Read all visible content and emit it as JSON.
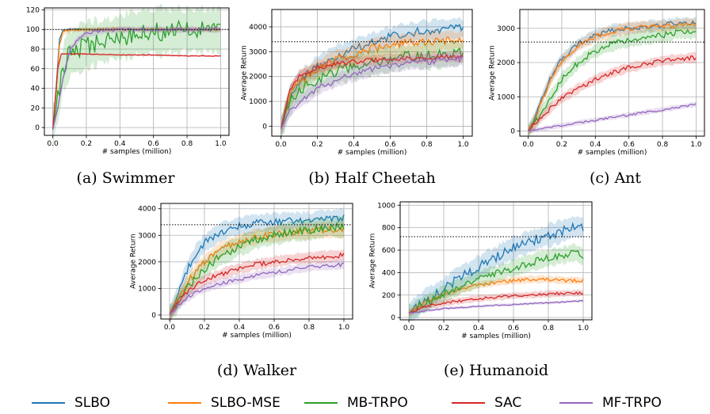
{
  "series_names": [
    "SLBO",
    "SLBO-MSE",
    "MB-TRPO",
    "SAC",
    "MF-TRPO"
  ],
  "series_colors": [
    "#1f77b4",
    "#ff7f0e",
    "#2ca02c",
    "#d62728",
    "#9467bd"
  ],
  "legend": [
    {
      "label": "SLBO",
      "color": "#1f77b4"
    },
    {
      "label": "SLBO-MSE",
      "color": "#ff7f0e"
    },
    {
      "label": "MB-TRPO",
      "color": "#2ca02c"
    },
    {
      "label": "SAC",
      "color": "#d62728"
    },
    {
      "label": "MF-TRPO",
      "color": "#9467bd"
    }
  ],
  "chart_data": [
    {
      "type": "line",
      "caption": "(a) Swimmer",
      "xlabel": "# samples (million)",
      "ylabel": "",
      "xlim": [
        -0.05,
        1.05
      ],
      "ylim": [
        -8,
        122
      ],
      "xticks": [
        0.0,
        0.2,
        0.4,
        0.6,
        0.8,
        1.0
      ],
      "xtick_labels": [
        "0.0",
        "0.2",
        "0.4",
        "0.6",
        "0.8",
        "1.0"
      ],
      "yticks": [
        0,
        20,
        40,
        60,
        80,
        100,
        120
      ],
      "ytick_labels": [
        "0",
        "20",
        "40",
        "60",
        "80",
        "100",
        "120"
      ],
      "reference_line": 100,
      "grid": true,
      "series": [
        {
          "name": "SLBO",
          "x": [
            0,
            0.02,
            0.04,
            0.06,
            0.1,
            0.2,
            0.4,
            0.6,
            0.8,
            1.0
          ],
          "y": [
            -2,
            40,
            90,
            99,
            100,
            100,
            100,
            100,
            100,
            100
          ],
          "band": 2
        },
        {
          "name": "SLBO-MSE",
          "x": [
            0,
            0.02,
            0.04,
            0.06,
            0.1,
            0.2,
            0.4,
            0.6,
            0.8,
            1.0
          ],
          "y": [
            -2,
            35,
            85,
            97,
            99,
            100,
            100,
            100,
            100,
            100
          ],
          "band": 3
        },
        {
          "name": "MB-TRPO",
          "x": [
            0,
            0.03,
            0.06,
            0.1,
            0.15,
            0.2,
            0.3,
            0.4,
            0.5,
            0.6,
            0.8,
            1.0
          ],
          "y": [
            -2,
            30,
            60,
            75,
            80,
            84,
            88,
            92,
            96,
            98,
            99,
            99
          ],
          "band": 28
        },
        {
          "name": "SAC",
          "x": [
            0,
            0.03,
            0.05,
            0.1,
            0.2,
            0.4,
            0.6,
            0.8,
            1.0
          ],
          "y": [
            -2,
            60,
            75,
            75,
            75,
            74,
            74,
            73,
            73
          ],
          "band": 1
        },
        {
          "name": "MF-TRPO",
          "x": [
            0,
            0.03,
            0.06,
            0.1,
            0.15,
            0.2,
            0.3,
            0.4,
            0.6,
            1.0
          ],
          "y": [
            -2,
            20,
            50,
            78,
            90,
            96,
            99,
            100,
            100,
            100
          ],
          "band": 4
        }
      ]
    },
    {
      "type": "line",
      "caption": "(b) Half Cheetah",
      "xlabel": "# samples (million)",
      "ylabel": "Average Return",
      "xlim": [
        -0.05,
        1.05
      ],
      "ylim": [
        -400,
        4700
      ],
      "xticks": [
        0.0,
        0.2,
        0.4,
        0.6,
        0.8,
        1.0
      ],
      "xtick_labels": [
        "0.0",
        "0.2",
        "0.4",
        "0.6",
        "0.8",
        "1.0"
      ],
      "yticks": [
        0,
        1000,
        2000,
        3000,
        4000
      ],
      "ytick_labels": [
        "0",
        "1000",
        "2000",
        "3000",
        "4000"
      ],
      "reference_line": 3400,
      "grid": true,
      "series": [
        {
          "name": "SLBO",
          "x": [
            0,
            0.05,
            0.1,
            0.2,
            0.3,
            0.4,
            0.5,
            0.6,
            0.7,
            0.8,
            0.9,
            1.0
          ],
          "y": [
            -100,
            1200,
            1800,
            2400,
            2800,
            3100,
            3350,
            3600,
            3750,
            3850,
            3900,
            3950
          ],
          "band": 500
        },
        {
          "name": "SLBO-MSE",
          "x": [
            0,
            0.05,
            0.1,
            0.2,
            0.3,
            0.4,
            0.5,
            0.6,
            0.7,
            0.8,
            0.9,
            1.0
          ],
          "y": [
            -100,
            1200,
            1800,
            2300,
            2650,
            2900,
            3100,
            3250,
            3350,
            3400,
            3450,
            3450
          ],
          "band": 500
        },
        {
          "name": "MB-TRPO",
          "x": [
            0,
            0.05,
            0.1,
            0.2,
            0.3,
            0.4,
            0.5,
            0.6,
            0.7,
            0.8,
            0.9,
            1.0
          ],
          "y": [
            -100,
            1000,
            1400,
            1900,
            2200,
            2400,
            2550,
            2700,
            2800,
            2850,
            2900,
            2950
          ],
          "band": 650
        },
        {
          "name": "SAC",
          "x": [
            0,
            0.05,
            0.1,
            0.2,
            0.3,
            0.4,
            0.5,
            0.6,
            0.7,
            0.8,
            0.9,
            1.0
          ],
          "y": [
            -100,
            1500,
            2000,
            2350,
            2500,
            2600,
            2650,
            2700,
            2750,
            2750,
            2800,
            2800
          ],
          "band": 250
        },
        {
          "name": "MF-TRPO",
          "x": [
            0,
            0.05,
            0.1,
            0.2,
            0.3,
            0.4,
            0.5,
            0.6,
            0.7,
            0.8,
            0.9,
            1.0
          ],
          "y": [
            -100,
            600,
            1000,
            1500,
            1850,
            2100,
            2300,
            2450,
            2550,
            2600,
            2650,
            2700
          ],
          "band": 350
        }
      ]
    },
    {
      "type": "line",
      "caption": "(c) Ant",
      "xlabel": "# samples (million)",
      "ylabel": "Average Return",
      "xlim": [
        -0.05,
        1.05
      ],
      "ylim": [
        -150,
        3550
      ],
      "xticks": [
        0.0,
        0.2,
        0.4,
        0.6,
        0.8,
        1.0
      ],
      "xtick_labels": [
        "0.0",
        "0.2",
        "0.4",
        "0.6",
        "0.8",
        "1.0"
      ],
      "yticks": [
        0,
        1000,
        2000,
        3000
      ],
      "ytick_labels": [
        "0",
        "1000",
        "2000",
        "3000"
      ],
      "reference_line": 2600,
      "grid": true,
      "series": [
        {
          "name": "SLBO",
          "x": [
            0,
            0.05,
            0.1,
            0.15,
            0.2,
            0.3,
            0.4,
            0.5,
            0.6,
            0.7,
            0.8,
            0.9,
            1.0
          ],
          "y": [
            0,
            500,
            1200,
            1700,
            2100,
            2550,
            2800,
            2950,
            3000,
            3050,
            3100,
            3150,
            3150
          ],
          "band": 200
        },
        {
          "name": "SLBO-MSE",
          "x": [
            0,
            0.05,
            0.1,
            0.15,
            0.2,
            0.3,
            0.4,
            0.5,
            0.6,
            0.7,
            0.8,
            0.9,
            1.0
          ],
          "y": [
            0,
            450,
            1100,
            1650,
            2050,
            2500,
            2750,
            2900,
            3000,
            3050,
            3050,
            3100,
            3100
          ],
          "band": 200
        },
        {
          "name": "MB-TRPO",
          "x": [
            0,
            0.05,
            0.1,
            0.15,
            0.2,
            0.3,
            0.4,
            0.5,
            0.6,
            0.7,
            0.8,
            0.9,
            1.0
          ],
          "y": [
            0,
            300,
            700,
            1100,
            1500,
            2000,
            2350,
            2550,
            2650,
            2750,
            2800,
            2900,
            2900
          ],
          "band": 250
        },
        {
          "name": "SAC",
          "x": [
            0,
            0.05,
            0.1,
            0.15,
            0.2,
            0.3,
            0.4,
            0.5,
            0.6,
            0.7,
            0.8,
            0.9,
            1.0
          ],
          "y": [
            0,
            250,
            500,
            750,
            950,
            1250,
            1500,
            1700,
            1850,
            1950,
            2050,
            2100,
            2150
          ],
          "band": 180
        },
        {
          "name": "MF-TRPO",
          "x": [
            0,
            0.1,
            0.2,
            0.3,
            0.4,
            0.5,
            0.6,
            0.7,
            0.8,
            0.9,
            1.0
          ],
          "y": [
            0,
            80,
            160,
            240,
            320,
            400,
            470,
            550,
            620,
            700,
            780
          ],
          "band": 90
        }
      ]
    },
    {
      "type": "line",
      "caption": "(d) Walker",
      "xlabel": "# samples (million)",
      "ylabel": "Average Return",
      "xlim": [
        -0.05,
        1.05
      ],
      "ylim": [
        -150,
        4200
      ],
      "xticks": [
        0.0,
        0.2,
        0.4,
        0.6,
        0.8,
        1.0
      ],
      "xtick_labels": [
        "0.0",
        "0.2",
        "0.4",
        "0.6",
        "0.8",
        "1.0"
      ],
      "yticks": [
        0,
        1000,
        2000,
        3000,
        4000
      ],
      "ytick_labels": [
        "0",
        "1000",
        "2000",
        "3000",
        "4000"
      ],
      "reference_line": 3400,
      "grid": true,
      "series": [
        {
          "name": "SLBO",
          "x": [
            0,
            0.05,
            0.1,
            0.15,
            0.2,
            0.3,
            0.4,
            0.5,
            0.6,
            0.7,
            0.8,
            0.9,
            1.0
          ],
          "y": [
            0,
            800,
            1700,
            2300,
            2700,
            3150,
            3350,
            3450,
            3500,
            3550,
            3550,
            3600,
            3650
          ],
          "band": 400
        },
        {
          "name": "SLBO-MSE",
          "x": [
            0,
            0.05,
            0.1,
            0.15,
            0.2,
            0.3,
            0.4,
            0.5,
            0.6,
            0.7,
            0.8,
            0.9,
            1.0
          ],
          "y": [
            0,
            600,
            1200,
            1650,
            2000,
            2500,
            2750,
            2950,
            3050,
            3100,
            3150,
            3200,
            3200
          ],
          "band": 350
        },
        {
          "name": "MB-TRPO",
          "x": [
            0,
            0.05,
            0.1,
            0.15,
            0.2,
            0.3,
            0.4,
            0.5,
            0.6,
            0.7,
            0.8,
            0.9,
            1.0
          ],
          "y": [
            0,
            500,
            1000,
            1400,
            1750,
            2250,
            2600,
            2850,
            3000,
            3150,
            3200,
            3300,
            3300
          ],
          "band": 450
        },
        {
          "name": "SAC",
          "x": [
            0,
            0.05,
            0.1,
            0.15,
            0.2,
            0.3,
            0.4,
            0.5,
            0.6,
            0.7,
            0.8,
            0.9,
            1.0
          ],
          "y": [
            0,
            500,
            850,
            1100,
            1300,
            1550,
            1750,
            1900,
            2000,
            2100,
            2150,
            2200,
            2250
          ],
          "band": 250
        },
        {
          "name": "MF-TRPO",
          "x": [
            0,
            0.05,
            0.1,
            0.15,
            0.2,
            0.3,
            0.4,
            0.5,
            0.6,
            0.7,
            0.8,
            0.9,
            1.0
          ],
          "y": [
            0,
            350,
            650,
            850,
            1000,
            1200,
            1350,
            1500,
            1600,
            1700,
            1800,
            1850,
            1900
          ],
          "band": 200
        }
      ]
    },
    {
      "type": "line",
      "caption": "(e) Humanoid",
      "xlabel": "# samples (million)",
      "ylabel": "Average Return",
      "xlim": [
        -0.05,
        1.05
      ],
      "ylim": [
        -20,
        1030
      ],
      "xticks": [
        0.0,
        0.2,
        0.4,
        0.6,
        0.8,
        1.0
      ],
      "xtick_labels": [
        "0.0",
        "0.2",
        "0.4",
        "0.6",
        "0.8",
        "1.0"
      ],
      "yticks": [
        0,
        200,
        400,
        600,
        800,
        1000
      ],
      "ytick_labels": [
        "0",
        "200",
        "400",
        "600",
        "800",
        "1000"
      ],
      "reference_line": 720,
      "grid": true,
      "series": [
        {
          "name": "SLBO",
          "x": [
            0,
            0.05,
            0.1,
            0.2,
            0.3,
            0.4,
            0.5,
            0.6,
            0.7,
            0.8,
            0.9,
            0.95,
            1.0
          ],
          "y": [
            40,
            100,
            160,
            260,
            360,
            450,
            540,
            620,
            680,
            730,
            780,
            810,
            800
          ],
          "band": 120
        },
        {
          "name": "SLBO-MSE",
          "x": [
            0,
            0.05,
            0.1,
            0.2,
            0.3,
            0.4,
            0.5,
            0.6,
            0.7,
            0.8,
            0.9,
            1.0
          ],
          "y": [
            40,
            90,
            140,
            200,
            250,
            290,
            310,
            330,
            340,
            340,
            330,
            330
          ],
          "band": 40
        },
        {
          "name": "MB-TRPO",
          "x": [
            0,
            0.05,
            0.1,
            0.2,
            0.3,
            0.4,
            0.5,
            0.6,
            0.7,
            0.8,
            0.9,
            0.95,
            1.0
          ],
          "y": [
            40,
            90,
            130,
            210,
            280,
            340,
            390,
            440,
            490,
            530,
            560,
            580,
            540
          ],
          "band": 90
        },
        {
          "name": "SAC",
          "x": [
            0,
            0.05,
            0.1,
            0.2,
            0.3,
            0.4,
            0.5,
            0.6,
            0.7,
            0.8,
            0.9,
            1.0
          ],
          "y": [
            40,
            70,
            100,
            130,
            150,
            170,
            180,
            195,
            200,
            210,
            215,
            220
          ],
          "band": 35
        },
        {
          "name": "MF-TRPO",
          "x": [
            0,
            0.1,
            0.2,
            0.3,
            0.4,
            0.5,
            0.6,
            0.7,
            0.8,
            0.9,
            1.0
          ],
          "y": [
            40,
            60,
            80,
            90,
            100,
            110,
            115,
            125,
            130,
            140,
            150
          ],
          "band": 15
        }
      ]
    }
  ]
}
